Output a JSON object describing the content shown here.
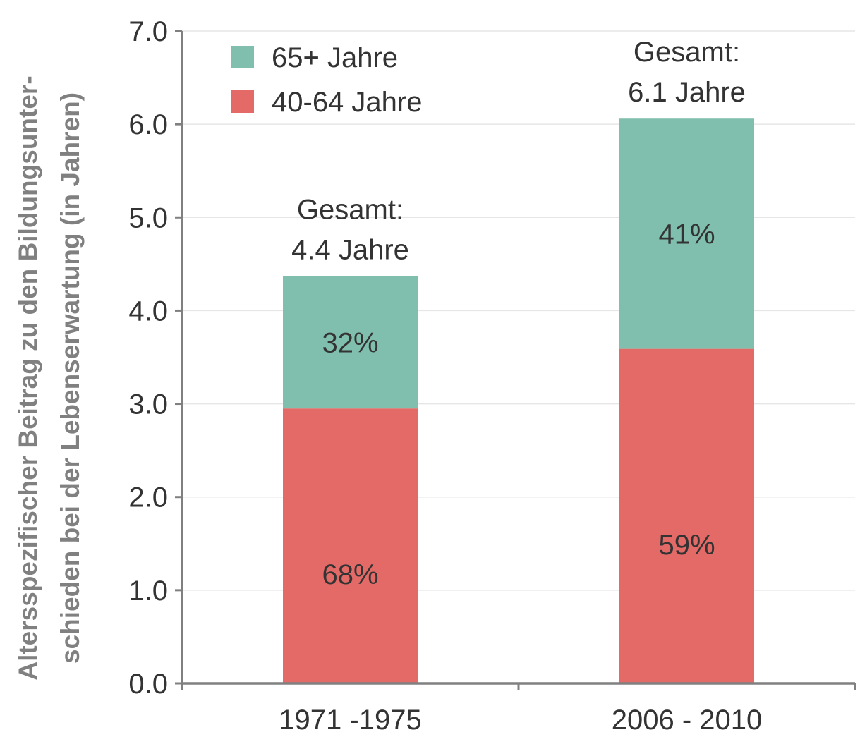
{
  "chart_data": {
    "type": "bar",
    "stacked": true,
    "categories": [
      "1971 -1975",
      "2006 - 2010"
    ],
    "series": [
      {
        "name": "40-64 Jahre",
        "color": "#e36a67",
        "values": [
          2.95,
          3.59
        ],
        "labels": [
          "68%",
          "59%"
        ]
      },
      {
        "name": "65+ Jahre",
        "color": "#80bfad",
        "values": [
          1.42,
          2.47
        ],
        "labels": [
          "32%",
          "41%"
        ]
      }
    ],
    "totals": [
      {
        "line1": "Gesamt:",
        "line2": "4.4 Jahre"
      },
      {
        "line1": "Gesamt:",
        "line2": "6.1 Jahre"
      }
    ],
    "ylabel_line1": "Altersspezifischer Beitrag zu den Bildungsunter-",
    "ylabel_line2": "schieden bei der Lebenserwartung (in Jahren)",
    "ylim": [
      0,
      7
    ],
    "yticks": [
      "0.0",
      "1.0",
      "2.0",
      "3.0",
      "4.0",
      "5.0",
      "6.0",
      "7.0"
    ],
    "grid": true,
    "legend_position": "top-left",
    "axis_color": "#808080",
    "grid_color": "#e6e6e6"
  }
}
